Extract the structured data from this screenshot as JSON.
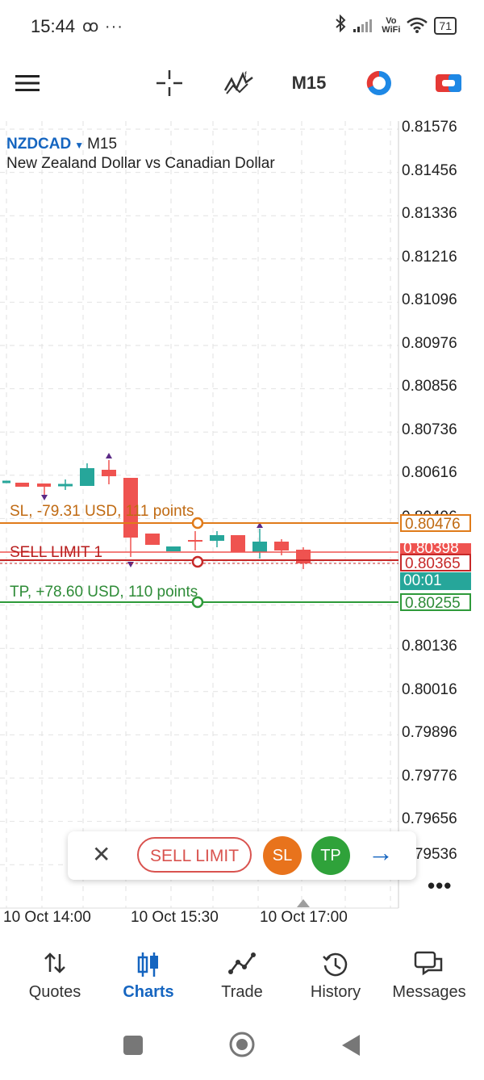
{
  "status": {
    "time": "15:44",
    "extra": "ꝏ ···",
    "wifi_label_top": "Vo",
    "wifi_label_bottom": "WiFi",
    "battery": "71"
  },
  "toolbar": {
    "timeframe": "M15"
  },
  "chart": {
    "symbol": "NZDCAD",
    "timeframe": "M15",
    "description": "New Zealand Dollar vs Canadian Dollar",
    "price_axis": [
      "0.81576",
      "0.81456",
      "0.81336",
      "0.81216",
      "0.81096",
      "0.80976",
      "0.80856",
      "0.80736",
      "0.80616",
      "0.80496",
      "0.80136",
      "0.80016",
      "0.79896",
      "0.79776",
      "0.79656",
      "0.79536"
    ],
    "sl_label": "SL, -79.31 USD, 111 points",
    "sell_limit_label": "SELL LIMIT 1",
    "tp_label": "TP, +78.60 USD, 110 points",
    "sl_tag": "0.80476",
    "bid_tag": "0.80398",
    "order_tag": "0.80365",
    "timer_tag": "00:01",
    "tp_tag": "0.80255",
    "time_axis": [
      "10 Oct 14:00",
      "10 Oct 15:30",
      "10 Oct 17:00"
    ],
    "colors": {
      "bull": "#26a69a",
      "bear": "#ef5350",
      "sl": "#e07b1a",
      "order": "#c62828",
      "tp": "#2e9a3a",
      "accent": "#1565c0"
    }
  },
  "trade_panel": {
    "sell_label": "SELL LIMIT",
    "sl_label": "SL",
    "tp_label": "TP",
    "more": "•••"
  },
  "nav": [
    {
      "label": "Quotes",
      "icon": "quotes-icon"
    },
    {
      "label": "Charts",
      "icon": "charts-icon"
    },
    {
      "label": "Trade",
      "icon": "trade-icon"
    },
    {
      "label": "History",
      "icon": "history-icon"
    },
    {
      "label": "Messages",
      "icon": "messages-icon"
    }
  ]
}
